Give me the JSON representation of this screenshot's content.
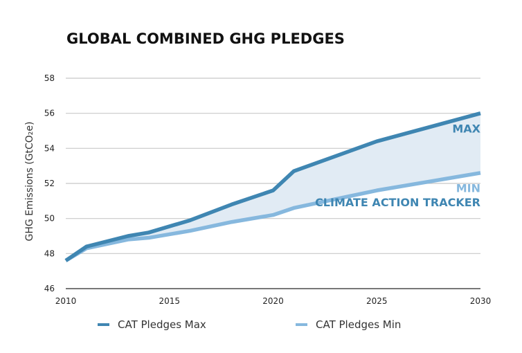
{
  "chart_data": {
    "type": "area",
    "title": "GLOBAL COMBINED GHG PLEDGES",
    "xlabel": "",
    "ylabel": "GHG Emissions (GtCO₂e)",
    "xlim": [
      2010,
      2030
    ],
    "ylim": [
      46,
      58
    ],
    "xticks": [
      2010,
      2015,
      2020,
      2025,
      2030
    ],
    "yticks": [
      46,
      48,
      50,
      52,
      54,
      56,
      58
    ],
    "grid": true,
    "x": [
      2010,
      2011,
      2013,
      2014,
      2016,
      2018,
      2020,
      2021,
      2025,
      2030
    ],
    "series": [
      {
        "name": "CAT Pledges Max",
        "color": "#3f86b2",
        "values": [
          47.6,
          48.4,
          49.0,
          49.2,
          49.9,
          50.8,
          51.6,
          52.7,
          54.4,
          56.0
        ]
      },
      {
        "name": "CAT Pledges Min",
        "color": "#86b8de",
        "values": [
          47.6,
          48.3,
          48.8,
          48.9,
          49.3,
          49.8,
          50.2,
          50.6,
          51.6,
          52.6
        ]
      }
    ],
    "band_fill": "#e1ebf4",
    "annotations": [
      {
        "text": "MAX",
        "color": "#3f86b2",
        "x": 2030,
        "y": 55.1
      },
      {
        "text": "MIN",
        "color": "#86b8de",
        "x": 2030,
        "y": 51.7
      },
      {
        "text": "CLIMATE ACTION TRACKER",
        "color": "#3f86b2",
        "x": 2030,
        "y": 50.9
      }
    ],
    "legend_position": "bottom"
  }
}
